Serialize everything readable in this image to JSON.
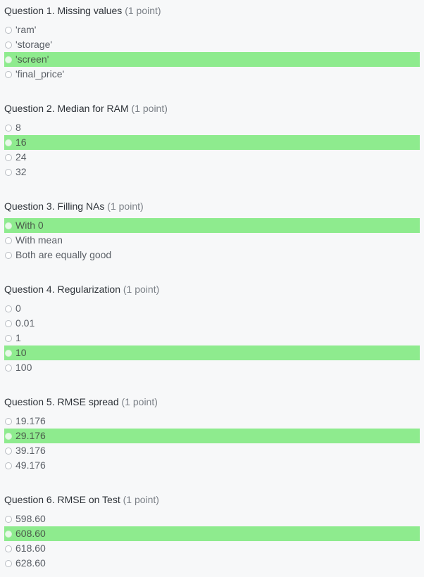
{
  "questions": [
    {
      "title": "Question 1. Missing values",
      "points": "(1 point)",
      "options": [
        {
          "label": "'ram'",
          "selected": false
        },
        {
          "label": "'storage'",
          "selected": false
        },
        {
          "label": "'screen'",
          "selected": true
        },
        {
          "label": "'final_price'",
          "selected": false
        }
      ]
    },
    {
      "title": "Question 2. Median for RAM",
      "points": "(1 point)",
      "options": [
        {
          "label": "8",
          "selected": false
        },
        {
          "label": "16",
          "selected": true
        },
        {
          "label": "24",
          "selected": false
        },
        {
          "label": "32",
          "selected": false
        }
      ]
    },
    {
      "title": "Question 3. Filling NAs",
      "points": "(1 point)",
      "options": [
        {
          "label": "With 0",
          "selected": true
        },
        {
          "label": "With mean",
          "selected": false
        },
        {
          "label": "Both are equally good",
          "selected": false
        }
      ]
    },
    {
      "title": "Question 4. Regularization",
      "points": "(1 point)",
      "options": [
        {
          "label": "0",
          "selected": false
        },
        {
          "label": "0.01",
          "selected": false
        },
        {
          "label": "1",
          "selected": false
        },
        {
          "label": "10",
          "selected": true
        },
        {
          "label": "100",
          "selected": false
        }
      ]
    },
    {
      "title": "Question 5. RMSE spread",
      "points": "(1 point)",
      "options": [
        {
          "label": "19.176",
          "selected": false
        },
        {
          "label": "29.176",
          "selected": true
        },
        {
          "label": "39.176",
          "selected": false
        },
        {
          "label": "49.176",
          "selected": false
        }
      ]
    },
    {
      "title": "Question 6. RMSE on Test",
      "points": "(1 point)",
      "options": [
        {
          "label": "598.60",
          "selected": false
        },
        {
          "label": "608.60",
          "selected": true
        },
        {
          "label": "618.60",
          "selected": false
        },
        {
          "label": "628.60",
          "selected": false
        }
      ]
    }
  ]
}
